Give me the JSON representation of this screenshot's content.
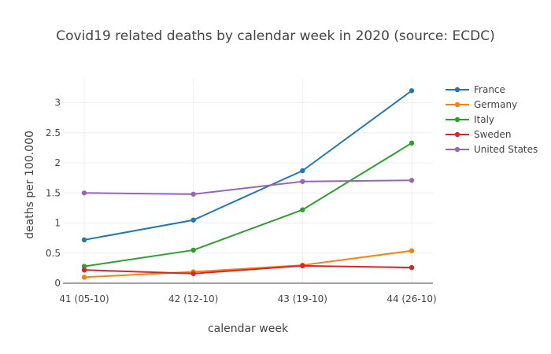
{
  "chart_data": {
    "type": "line",
    "title": "Covid19 related deaths by calendar week in 2020 (source: ECDC)",
    "xlabel": "calendar week",
    "ylabel": "deaths per 100.000",
    "categories": [
      "41 (05-10)",
      "42 (12-10)",
      "43 (19-10)",
      "44 (26-10)"
    ],
    "ylim": [
      0,
      3.4
    ],
    "yticks": [
      0,
      0.5,
      1,
      1.5,
      2,
      2.5,
      3
    ],
    "ytick_labels": [
      "0",
      "0.5",
      "1",
      "1.5",
      "2",
      "2.5",
      "3"
    ],
    "grid": true,
    "legend": "right",
    "series": [
      {
        "name": "France",
        "color": "#1f77b4",
        "values": [
          0.72,
          1.05,
          1.87,
          3.2
        ]
      },
      {
        "name": "Germany",
        "color": "#ff7f0e",
        "values": [
          0.1,
          0.19,
          0.3,
          0.54
        ]
      },
      {
        "name": "Italy",
        "color": "#2ca02c",
        "values": [
          0.28,
          0.55,
          1.22,
          2.33
        ]
      },
      {
        "name": "Sweden",
        "color": "#d62728",
        "values": [
          0.22,
          0.16,
          0.29,
          0.26
        ]
      },
      {
        "name": "United States",
        "color": "#9467bd",
        "values": [
          1.5,
          1.48,
          1.69,
          1.71
        ]
      }
    ]
  }
}
